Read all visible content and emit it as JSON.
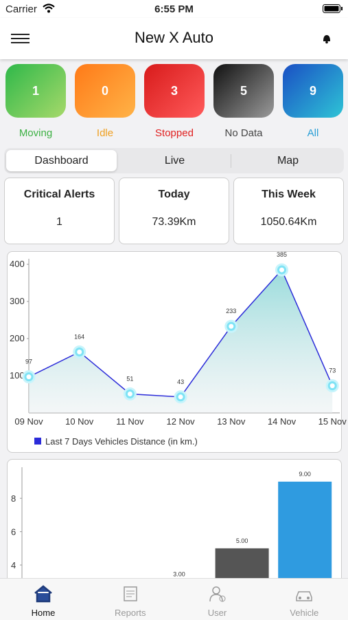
{
  "status_bar": {
    "carrier": "Carrier",
    "time": "6:55 PM"
  },
  "header": {
    "title": "New X Auto"
  },
  "status_tiles": [
    {
      "count": 1,
      "label": "Moving"
    },
    {
      "count": 0,
      "label": "Idle"
    },
    {
      "count": 3,
      "label": "Stopped"
    },
    {
      "count": 5,
      "label": "No Data"
    },
    {
      "count": 9,
      "label": "All"
    }
  ],
  "tabs": [
    "Dashboard",
    "Live",
    "Map"
  ],
  "summary": [
    {
      "title": "Critical Alerts",
      "value": "1"
    },
    {
      "title": "Today",
      "value": "73.39Km"
    },
    {
      "title": "This Week",
      "value": "1050.64Km"
    }
  ],
  "chart_data": [
    {
      "type": "line",
      "categories": [
        "09 Nov",
        "10 Nov",
        "11 Nov",
        "12 Nov",
        "13 Nov",
        "14 Nov",
        "15 Nov"
      ],
      "series": [
        {
          "name": "Last 7 Days Vehicles Distance (in km.)",
          "color": "#2b2bd9",
          "values": [
            97,
            164,
            51,
            43,
            233,
            385,
            73
          ]
        }
      ],
      "ylim": [
        0,
        415
      ],
      "yticks": [
        100,
        200,
        300,
        400
      ],
      "legend": "bottom-left"
    },
    {
      "type": "bar",
      "values": [
        null,
        null,
        3,
        5,
        9
      ],
      "value_labels": [
        null,
        null,
        "3.00",
        "5.00",
        "9.00"
      ],
      "colors": [
        null,
        null,
        "#e53935",
        "#555555",
        "#2f9be0"
      ],
      "ylim": [
        0,
        10
      ],
      "yticks": [
        4,
        6,
        8
      ]
    }
  ],
  "nav": [
    "Home",
    "Reports",
    "User",
    "Vehicle"
  ]
}
